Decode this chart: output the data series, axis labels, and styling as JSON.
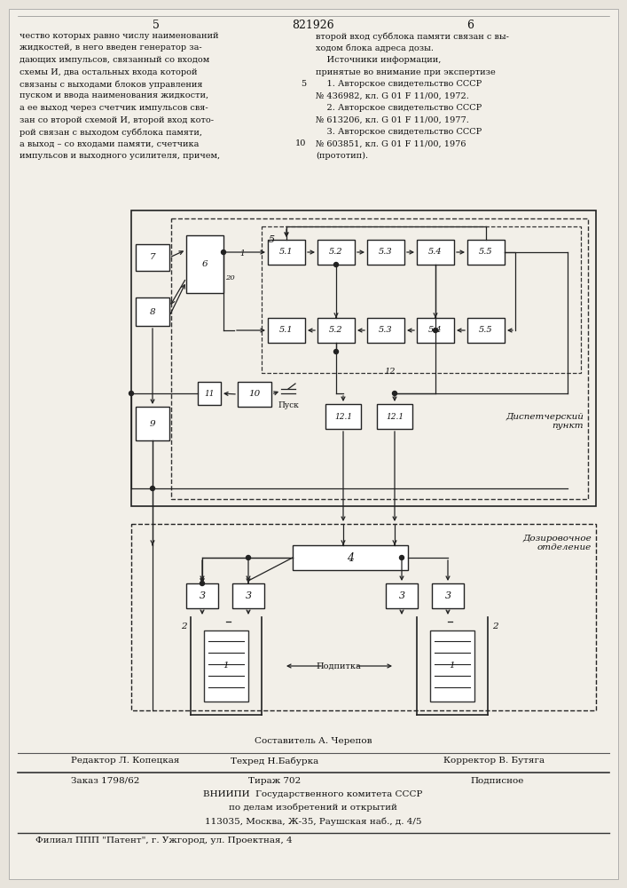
{
  "bg_color": "#e8e4dc",
  "page_color": "#f2efe8",
  "title_number": "821926",
  "page_left": "5",
  "page_right": "6",
  "text_left": [
    "чество которых равно числу наименований",
    "жидкостей, в него введен генератор за-",
    "дающих импульсов, связанный со входом",
    "схемы И, два остальных входа которой",
    "связаны с выходами блоков управления",
    "пуском и ввода наименования жидкости,",
    "а ее выход через счетчик импульсов свя-",
    "зан со второй схемой И, второй вход кото-",
    "рой связан с выходом субблока памяти,",
    "а выход – со входами памяти, счетчика",
    "импульсов и выходного усилителя, причем,"
  ],
  "text_right": [
    "второй вход субблока памяти связан с вы-",
    "ходом блока адреса дозы.",
    "    Источники информации,",
    "принятые во внимание при экспертизе",
    "    1. Авторское свидетельство СССР",
    "№ 436982, кл. G 01 F 11/00, 1972.",
    "    2. Авторское свидетельство СССР",
    "№ 613206, кл. G 01 F 11/00, 1977.",
    "    3. Авторское свидетельство СССР",
    "№ 603851, кл. G 01 F 11/00, 1976",
    "(прототип)."
  ],
  "footer_line1": "Составитель А. Черепов",
  "footer_line2_left": "Редактор Л. Копецкая",
  "footer_line2_mid": "Техред Н.Бабурка",
  "footer_line2_right": "Корректор В. Бутяга",
  "footer_line3_left": "Заказ 1798/62",
  "footer_line3_mid": "Тираж 702",
  "footer_line3_right": "Подписное",
  "footer_line4": "ВНИИПИ  Государственного комитета СССР",
  "footer_line5": "по делам изобретений и открытий",
  "footer_line6": "113035, Москва, Ж-35, Раушская наб., д. 4/5",
  "footer_line7": "Филиал ППП \"Патент\", г. Ужгород, ул. Проектная, 4",
  "disp_label": "Диспетчерский\nпункт",
  "doz_label": "Дозировочное\nотделение",
  "podpitka_label": "Подпитка",
  "pusk_label": "Пуск"
}
